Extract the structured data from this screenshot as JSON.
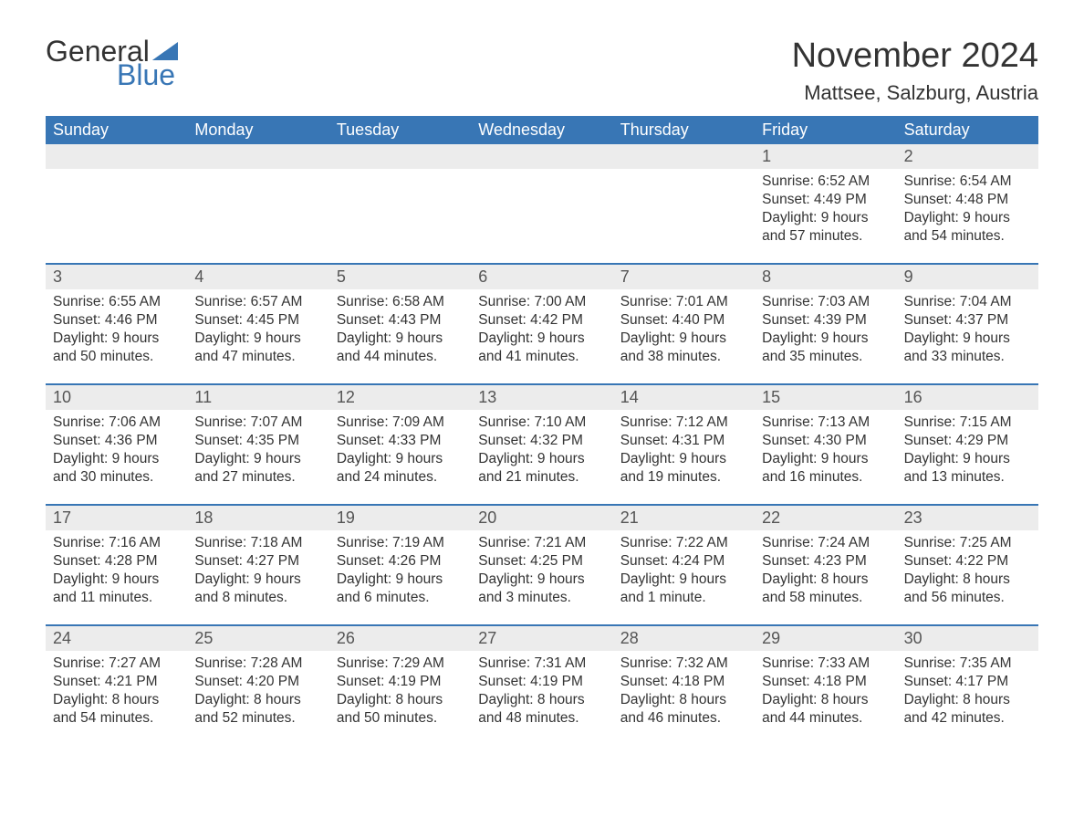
{
  "logo": {
    "text1": "General",
    "text2": "Blue",
    "tri_color": "#3876b5"
  },
  "title": "November 2024",
  "location": "Mattsee, Salzburg, Austria",
  "colors": {
    "header_bg": "#3876b5",
    "header_text": "#ffffff",
    "daynum_bg": "#ececec",
    "week_border": "#3876b5",
    "text": "#333333"
  },
  "fonts": {
    "title_size_pt": 28,
    "location_size_pt": 16,
    "header_size_pt": 14,
    "body_size_pt": 12
  },
  "day_names": [
    "Sunday",
    "Monday",
    "Tuesday",
    "Wednesday",
    "Thursday",
    "Friday",
    "Saturday"
  ],
  "weeks": [
    [
      {
        "day": "",
        "sunrise": "",
        "sunset": "",
        "daylight1": "",
        "daylight2": ""
      },
      {
        "day": "",
        "sunrise": "",
        "sunset": "",
        "daylight1": "",
        "daylight2": ""
      },
      {
        "day": "",
        "sunrise": "",
        "sunset": "",
        "daylight1": "",
        "daylight2": ""
      },
      {
        "day": "",
        "sunrise": "",
        "sunset": "",
        "daylight1": "",
        "daylight2": ""
      },
      {
        "day": "",
        "sunrise": "",
        "sunset": "",
        "daylight1": "",
        "daylight2": ""
      },
      {
        "day": "1",
        "sunrise": "Sunrise: 6:52 AM",
        "sunset": "Sunset: 4:49 PM",
        "daylight1": "Daylight: 9 hours",
        "daylight2": "and 57 minutes."
      },
      {
        "day": "2",
        "sunrise": "Sunrise: 6:54 AM",
        "sunset": "Sunset: 4:48 PM",
        "daylight1": "Daylight: 9 hours",
        "daylight2": "and 54 minutes."
      }
    ],
    [
      {
        "day": "3",
        "sunrise": "Sunrise: 6:55 AM",
        "sunset": "Sunset: 4:46 PM",
        "daylight1": "Daylight: 9 hours",
        "daylight2": "and 50 minutes."
      },
      {
        "day": "4",
        "sunrise": "Sunrise: 6:57 AM",
        "sunset": "Sunset: 4:45 PM",
        "daylight1": "Daylight: 9 hours",
        "daylight2": "and 47 minutes."
      },
      {
        "day": "5",
        "sunrise": "Sunrise: 6:58 AM",
        "sunset": "Sunset: 4:43 PM",
        "daylight1": "Daylight: 9 hours",
        "daylight2": "and 44 minutes."
      },
      {
        "day": "6",
        "sunrise": "Sunrise: 7:00 AM",
        "sunset": "Sunset: 4:42 PM",
        "daylight1": "Daylight: 9 hours",
        "daylight2": "and 41 minutes."
      },
      {
        "day": "7",
        "sunrise": "Sunrise: 7:01 AM",
        "sunset": "Sunset: 4:40 PM",
        "daylight1": "Daylight: 9 hours",
        "daylight2": "and 38 minutes."
      },
      {
        "day": "8",
        "sunrise": "Sunrise: 7:03 AM",
        "sunset": "Sunset: 4:39 PM",
        "daylight1": "Daylight: 9 hours",
        "daylight2": "and 35 minutes."
      },
      {
        "day": "9",
        "sunrise": "Sunrise: 7:04 AM",
        "sunset": "Sunset: 4:37 PM",
        "daylight1": "Daylight: 9 hours",
        "daylight2": "and 33 minutes."
      }
    ],
    [
      {
        "day": "10",
        "sunrise": "Sunrise: 7:06 AM",
        "sunset": "Sunset: 4:36 PM",
        "daylight1": "Daylight: 9 hours",
        "daylight2": "and 30 minutes."
      },
      {
        "day": "11",
        "sunrise": "Sunrise: 7:07 AM",
        "sunset": "Sunset: 4:35 PM",
        "daylight1": "Daylight: 9 hours",
        "daylight2": "and 27 minutes."
      },
      {
        "day": "12",
        "sunrise": "Sunrise: 7:09 AM",
        "sunset": "Sunset: 4:33 PM",
        "daylight1": "Daylight: 9 hours",
        "daylight2": "and 24 minutes."
      },
      {
        "day": "13",
        "sunrise": "Sunrise: 7:10 AM",
        "sunset": "Sunset: 4:32 PM",
        "daylight1": "Daylight: 9 hours",
        "daylight2": "and 21 minutes."
      },
      {
        "day": "14",
        "sunrise": "Sunrise: 7:12 AM",
        "sunset": "Sunset: 4:31 PM",
        "daylight1": "Daylight: 9 hours",
        "daylight2": "and 19 minutes."
      },
      {
        "day": "15",
        "sunrise": "Sunrise: 7:13 AM",
        "sunset": "Sunset: 4:30 PM",
        "daylight1": "Daylight: 9 hours",
        "daylight2": "and 16 minutes."
      },
      {
        "day": "16",
        "sunrise": "Sunrise: 7:15 AM",
        "sunset": "Sunset: 4:29 PM",
        "daylight1": "Daylight: 9 hours",
        "daylight2": "and 13 minutes."
      }
    ],
    [
      {
        "day": "17",
        "sunrise": "Sunrise: 7:16 AM",
        "sunset": "Sunset: 4:28 PM",
        "daylight1": "Daylight: 9 hours",
        "daylight2": "and 11 minutes."
      },
      {
        "day": "18",
        "sunrise": "Sunrise: 7:18 AM",
        "sunset": "Sunset: 4:27 PM",
        "daylight1": "Daylight: 9 hours",
        "daylight2": "and 8 minutes."
      },
      {
        "day": "19",
        "sunrise": "Sunrise: 7:19 AM",
        "sunset": "Sunset: 4:26 PM",
        "daylight1": "Daylight: 9 hours",
        "daylight2": "and 6 minutes."
      },
      {
        "day": "20",
        "sunrise": "Sunrise: 7:21 AM",
        "sunset": "Sunset: 4:25 PM",
        "daylight1": "Daylight: 9 hours",
        "daylight2": "and 3 minutes."
      },
      {
        "day": "21",
        "sunrise": "Sunrise: 7:22 AM",
        "sunset": "Sunset: 4:24 PM",
        "daylight1": "Daylight: 9 hours",
        "daylight2": "and 1 minute."
      },
      {
        "day": "22",
        "sunrise": "Sunrise: 7:24 AM",
        "sunset": "Sunset: 4:23 PM",
        "daylight1": "Daylight: 8 hours",
        "daylight2": "and 58 minutes."
      },
      {
        "day": "23",
        "sunrise": "Sunrise: 7:25 AM",
        "sunset": "Sunset: 4:22 PM",
        "daylight1": "Daylight: 8 hours",
        "daylight2": "and 56 minutes."
      }
    ],
    [
      {
        "day": "24",
        "sunrise": "Sunrise: 7:27 AM",
        "sunset": "Sunset: 4:21 PM",
        "daylight1": "Daylight: 8 hours",
        "daylight2": "and 54 minutes."
      },
      {
        "day": "25",
        "sunrise": "Sunrise: 7:28 AM",
        "sunset": "Sunset: 4:20 PM",
        "daylight1": "Daylight: 8 hours",
        "daylight2": "and 52 minutes."
      },
      {
        "day": "26",
        "sunrise": "Sunrise: 7:29 AM",
        "sunset": "Sunset: 4:19 PM",
        "daylight1": "Daylight: 8 hours",
        "daylight2": "and 50 minutes."
      },
      {
        "day": "27",
        "sunrise": "Sunrise: 7:31 AM",
        "sunset": "Sunset: 4:19 PM",
        "daylight1": "Daylight: 8 hours",
        "daylight2": "and 48 minutes."
      },
      {
        "day": "28",
        "sunrise": "Sunrise: 7:32 AM",
        "sunset": "Sunset: 4:18 PM",
        "daylight1": "Daylight: 8 hours",
        "daylight2": "and 46 minutes."
      },
      {
        "day": "29",
        "sunrise": "Sunrise: 7:33 AM",
        "sunset": "Sunset: 4:18 PM",
        "daylight1": "Daylight: 8 hours",
        "daylight2": "and 44 minutes."
      },
      {
        "day": "30",
        "sunrise": "Sunrise: 7:35 AM",
        "sunset": "Sunset: 4:17 PM",
        "daylight1": "Daylight: 8 hours",
        "daylight2": "and 42 minutes."
      }
    ]
  ]
}
